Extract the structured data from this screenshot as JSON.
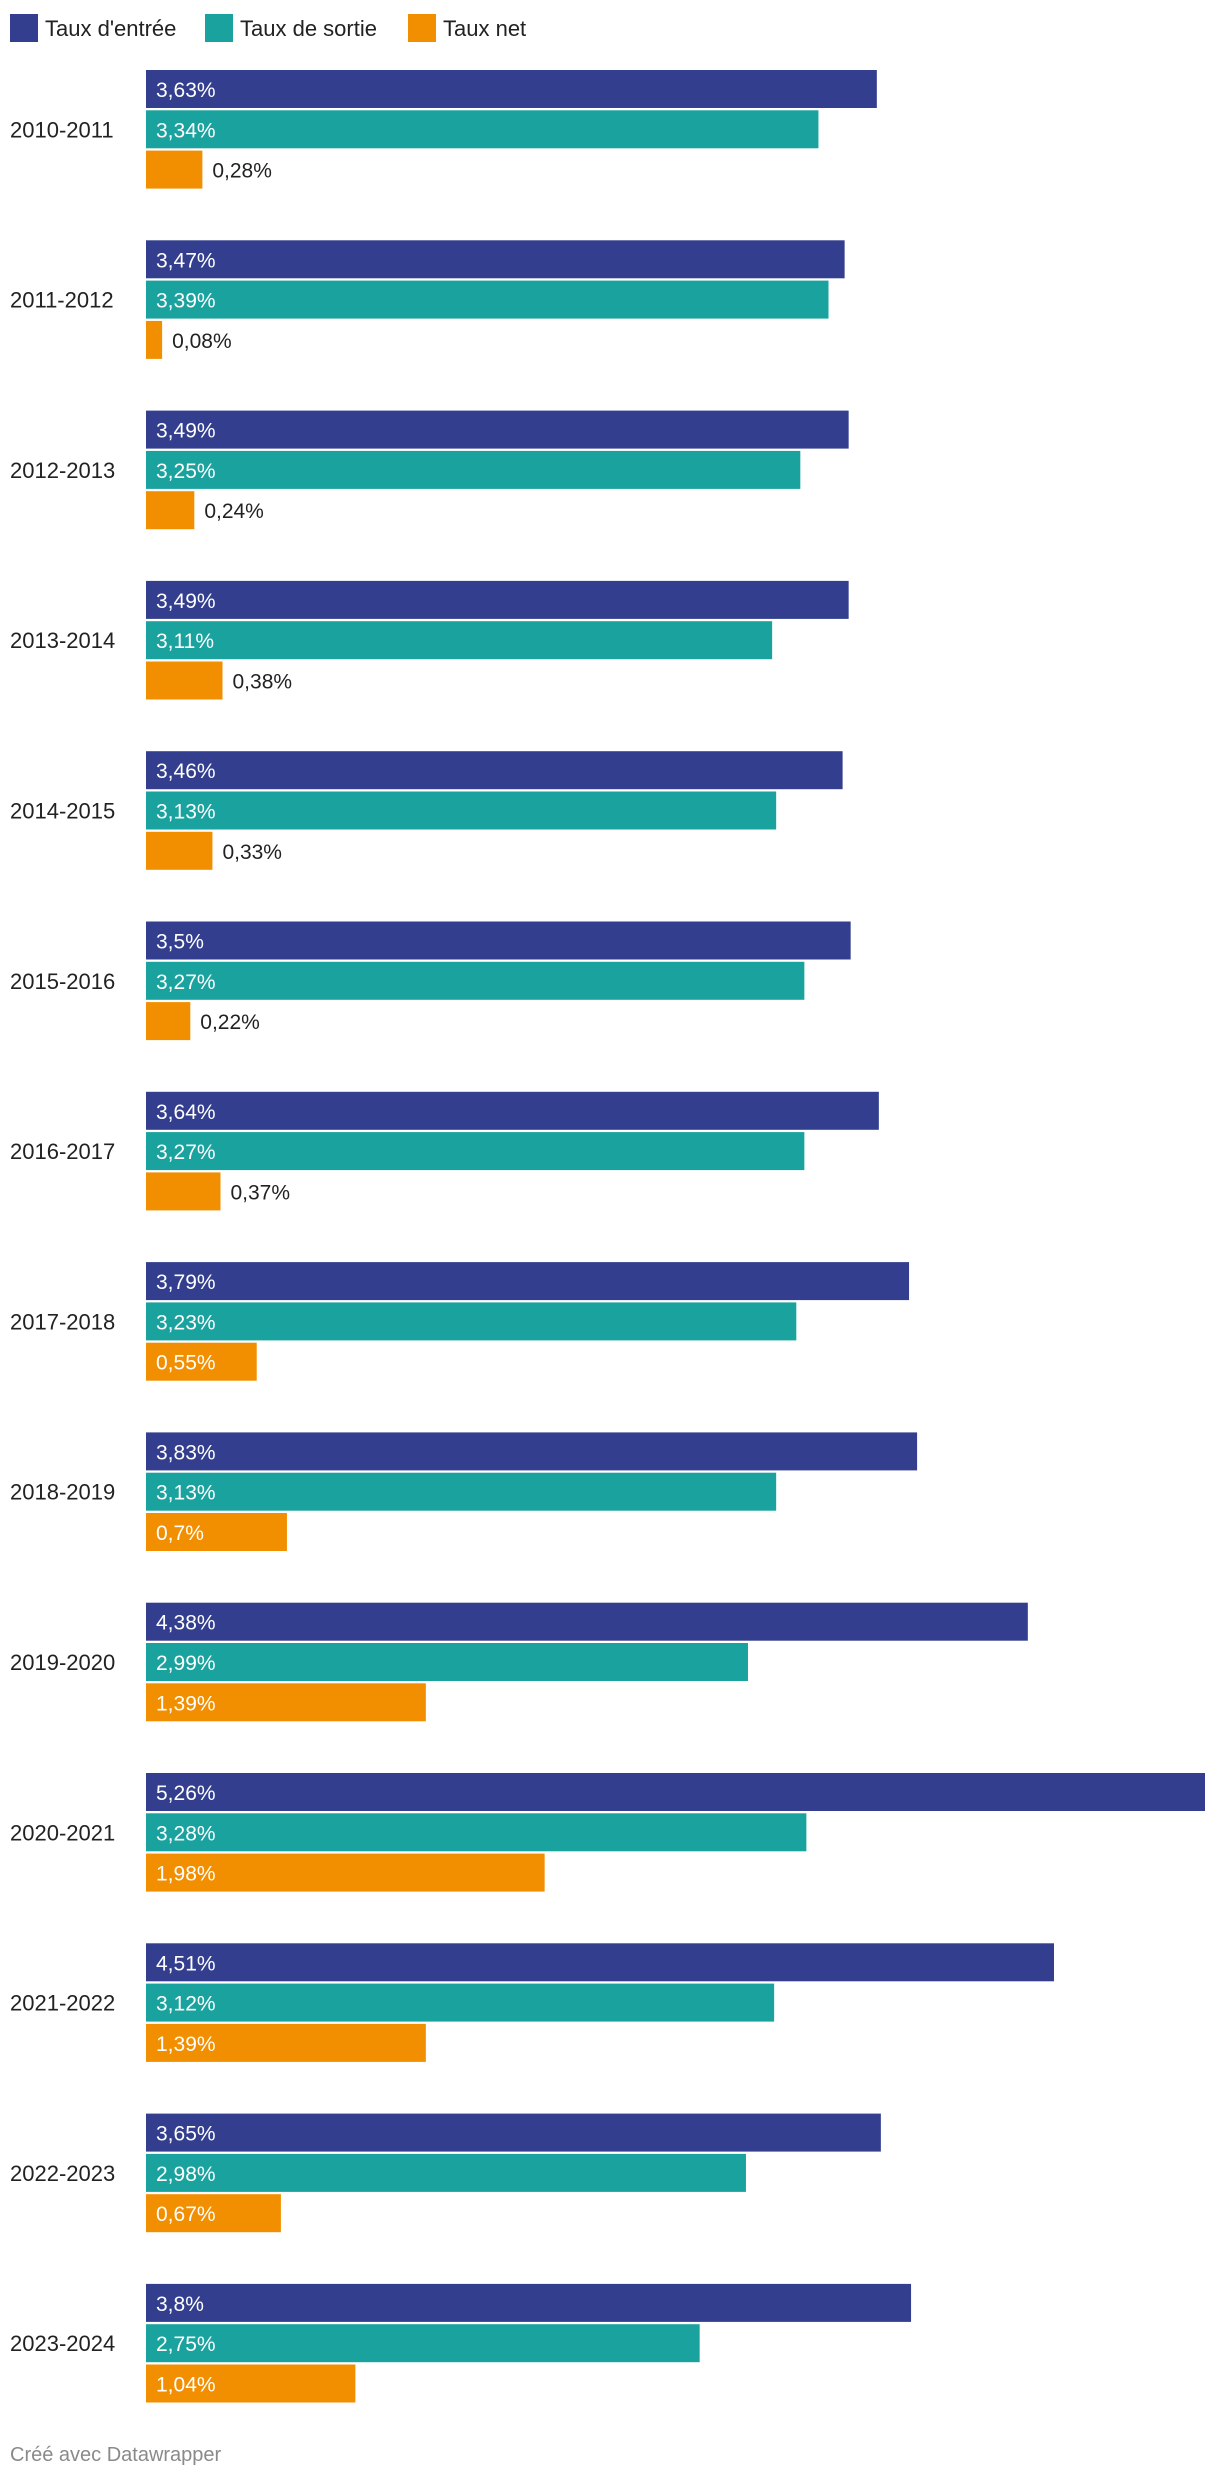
{
  "chart_data": {
    "type": "bar",
    "orientation": "horizontal",
    "categories": [
      "2010-2011",
      "2011-2012",
      "2012-2013",
      "2013-2014",
      "2014-2015",
      "2015-2016",
      "2016-2017",
      "2017-2018",
      "2018-2019",
      "2019-2020",
      "2020-2021",
      "2021-2022",
      "2022-2023",
      "2023-2024"
    ],
    "series": [
      {
        "name": "Taux d'entrée",
        "color": "#333f8e",
        "values": [
          3.63,
          3.47,
          3.49,
          3.49,
          3.46,
          3.5,
          3.64,
          3.79,
          3.83,
          4.38,
          5.26,
          4.51,
          3.65,
          3.8
        ],
        "labels": [
          "3,63%",
          "3,47%",
          "3,49%",
          "3,49%",
          "3,46%",
          "3,5%",
          "3,64%",
          "3,79%",
          "3,83%",
          "4,38%",
          "5,26%",
          "4,51%",
          "3,65%",
          "3,8%"
        ]
      },
      {
        "name": "Taux de sortie",
        "color": "#1aa39e",
        "values": [
          3.34,
          3.39,
          3.25,
          3.11,
          3.13,
          3.27,
          3.27,
          3.23,
          3.13,
          2.99,
          3.28,
          3.12,
          2.98,
          2.75
        ],
        "labels": [
          "3,34%",
          "3,39%",
          "3,25%",
          "3,11%",
          "3,13%",
          "3,27%",
          "3,27%",
          "3,23%",
          "3,13%",
          "2,99%",
          "3,28%",
          "3,12%",
          "2,98%",
          "2,75%"
        ]
      },
      {
        "name": "Taux net",
        "color": "#f28f00",
        "values": [
          0.28,
          0.08,
          0.24,
          0.38,
          0.33,
          0.22,
          0.37,
          0.55,
          0.7,
          1.39,
          1.98,
          1.39,
          0.67,
          1.04
        ],
        "labels": [
          "0,28%",
          "0,08%",
          "0,24%",
          "0,38%",
          "0,33%",
          "0,22%",
          "0,37%",
          "0,55%",
          "0,7%",
          "1,39%",
          "1,98%",
          "1,39%",
          "0,67%",
          "1,04%"
        ]
      }
    ],
    "xlim": [
      0,
      5.26
    ],
    "grid": false,
    "legend_position": "top-left",
    "credit": "Créé avec Datawrapper"
  }
}
